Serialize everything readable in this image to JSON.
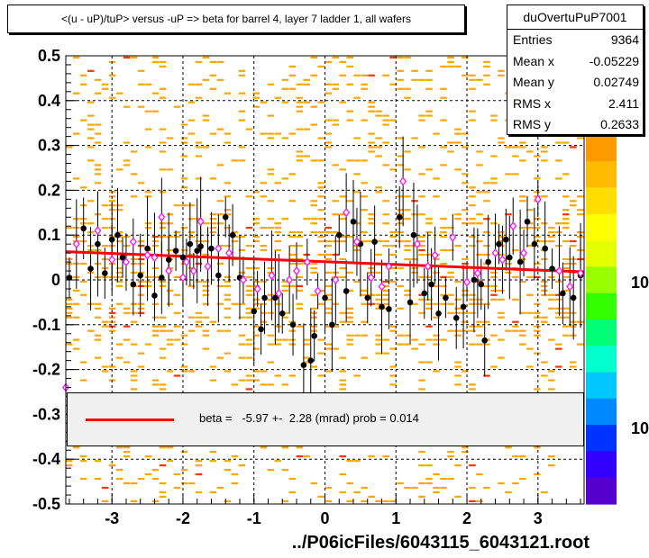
{
  "title": "<(u - uP)/tuP> versus  -uP => beta for barrel 4, layer 7 ladder 1, all wafers",
  "stats": {
    "name": "duOvertuPuP7001",
    "rows": [
      {
        "key": "Entries",
        "value": "9364"
      },
      {
        "key": "Mean x",
        "value": "-0.05229"
      },
      {
        "key": "Mean y",
        "value": "0.02749"
      },
      {
        "key": "RMS x",
        "value": "2.411"
      },
      {
        "key": "RMS y",
        "value": "0.2633"
      }
    ]
  },
  "fit_legend": "beta =   -5.97 +-  2.28 (mrad) prob = 0.014",
  "footer": "../P06icFiles/6043115_6043121.root",
  "palette_labels": [
    "10",
    "10"
  ],
  "colors": {
    "background_fill": "#ffa500",
    "fit_line": "#ff0000",
    "profile_filled": "#000000",
    "profile_open": "#ff00ff"
  },
  "chart_data": {
    "type": "scatter",
    "xlim": [
      -3.65,
      3.65
    ],
    "ylim": [
      -0.5,
      0.5
    ],
    "x_ticks": [
      "-3",
      "-2",
      "-1",
      "0",
      "1",
      "2",
      "3"
    ],
    "y_ticks": [
      "-0.5",
      "-0.4",
      "-0.3",
      "-0.2",
      "-0.1",
      "0",
      "0.1",
      "0.2",
      "0.3",
      "0.4",
      "0.5"
    ],
    "grid": true,
    "fit": {
      "x": [
        -3.65,
        3.65
      ],
      "y": [
        0.063,
        0.018
      ]
    },
    "series": [
      {
        "marker": "filled-circle",
        "points": [
          [
            -3.6,
            0.005
          ],
          [
            -3.4,
            0.115
          ],
          [
            -3.3,
            0.025
          ],
          [
            -3.2,
            0.08
          ],
          [
            -3.1,
            0.015
          ],
          [
            -3.0,
            0.09
          ],
          [
            -2.92,
            0.1
          ],
          [
            -2.85,
            0.05
          ],
          [
            -2.7,
            -0.01
          ],
          [
            -2.6,
            0.01
          ],
          [
            -2.5,
            0.07
          ],
          [
            -2.4,
            -0.035
          ],
          [
            -2.3,
            0.005
          ],
          [
            -2.2,
            0.045
          ],
          [
            -2.1,
            0.065
          ],
          [
            -2.0,
            0.05
          ],
          [
            -1.9,
            0.08
          ],
          [
            -1.8,
            0.065
          ],
          [
            -1.75,
            0.075
          ],
          [
            -1.6,
            0.07
          ],
          [
            -1.5,
            0.01
          ],
          [
            -1.4,
            0.14
          ],
          [
            -1.3,
            0.1
          ],
          [
            -1.2,
            0.005
          ],
          [
            -1.0,
            -0.07
          ],
          [
            -0.9,
            -0.11
          ],
          [
            -0.85,
            -0.04
          ],
          [
            -0.7,
            -0.04
          ],
          [
            -0.6,
            -0.075
          ],
          [
            -0.45,
            -0.1
          ],
          [
            -0.3,
            -0.19
          ],
          [
            -0.2,
            -0.18
          ],
          [
            -0.15,
            -0.125
          ],
          [
            0.0,
            -0.04
          ],
          [
            0.1,
            -0.1
          ],
          [
            0.2,
            0.1
          ],
          [
            0.3,
            -0.025
          ],
          [
            0.4,
            0.13
          ],
          [
            0.5,
            0.08
          ],
          [
            0.6,
            -0.04
          ],
          [
            0.7,
            0.085
          ],
          [
            0.8,
            -0.06
          ],
          [
            0.9,
            -0.065
          ],
          [
            1.05,
            0.14
          ],
          [
            1.2,
            -0.05
          ],
          [
            1.25,
            0.1
          ],
          [
            1.4,
            -0.03
          ],
          [
            1.5,
            -0.01
          ],
          [
            1.6,
            -0.075
          ],
          [
            1.7,
            -0.04
          ],
          [
            1.85,
            -0.085
          ],
          [
            1.95,
            -0.06
          ],
          [
            2.1,
            0.0
          ],
          [
            2.2,
            -0.01
          ],
          [
            2.25,
            -0.135
          ],
          [
            2.3,
            0.04
          ],
          [
            2.45,
            0.08
          ],
          [
            2.55,
            0.09
          ],
          [
            2.6,
            0.05
          ],
          [
            2.75,
            0.04
          ],
          [
            2.85,
            0.13
          ],
          [
            2.95,
            0.08
          ],
          [
            3.1,
            0.07
          ],
          [
            3.2,
            0.025
          ],
          [
            3.35,
            -0.03
          ],
          [
            3.5,
            -0.04
          ],
          [
            3.6,
            0.01
          ]
        ]
      },
      {
        "marker": "open-diamond",
        "points": [
          [
            -3.65,
            -0.24
          ],
          [
            -3.5,
            0.08
          ],
          [
            -3.2,
            0.11
          ],
          [
            -3.0,
            0.045
          ],
          [
            -2.8,
            0.04
          ],
          [
            -2.7,
            0.085
          ],
          [
            -2.5,
            0.055
          ],
          [
            -2.4,
            0.05
          ],
          [
            -2.3,
            0.14
          ],
          [
            -2.2,
            0.02
          ],
          [
            -2.0,
            0.005
          ],
          [
            -1.95,
            0.04
          ],
          [
            -1.85,
            0.02
          ],
          [
            -1.75,
            0.13
          ],
          [
            -1.65,
            0.03
          ],
          [
            -1.5,
            0.07
          ],
          [
            -1.35,
            0.06
          ],
          [
            -1.15,
            0.0
          ],
          [
            -0.95,
            -0.02
          ],
          [
            -0.75,
            0.01
          ],
          [
            -0.65,
            -0.03
          ],
          [
            -0.5,
            0.0
          ],
          [
            -0.4,
            0.02
          ],
          [
            -0.25,
            0.04
          ],
          [
            -0.1,
            -0.025
          ],
          [
            0.15,
            0.0
          ],
          [
            0.3,
            0.15
          ],
          [
            0.45,
            0.085
          ],
          [
            0.65,
            0.005
          ],
          [
            0.8,
            -0.015
          ],
          [
            0.9,
            0.03
          ],
          [
            1.1,
            0.22
          ],
          [
            1.3,
            0.08
          ],
          [
            1.45,
            0.03
          ],
          [
            1.55,
            0.055
          ],
          [
            1.8,
            0.095
          ],
          [
            2.0,
            -0.005
          ],
          [
            2.15,
            0.015
          ],
          [
            2.4,
            0.06
          ],
          [
            2.5,
            0.045
          ],
          [
            2.65,
            0.12
          ],
          [
            2.8,
            0.06
          ],
          [
            3.0,
            0.18
          ],
          [
            3.3,
            0.02
          ],
          [
            3.45,
            -0.015
          ],
          [
            3.6,
            0.015
          ]
        ]
      }
    ]
  }
}
